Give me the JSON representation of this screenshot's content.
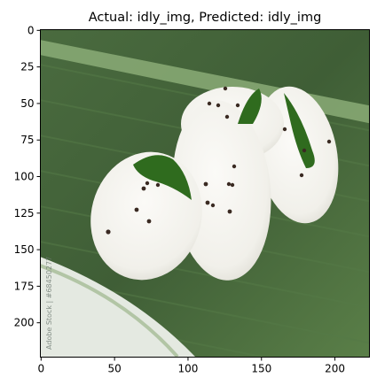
{
  "title": "Actual: idly_img, Predicted: idly_img",
  "image": {
    "subject": "idly-on-banana-leaf-photo",
    "watermark_text": "Adobe Stock | #68450277",
    "colors": {
      "leaf_dark": "#3d5a34",
      "leaf_mid": "#5a7d4a",
      "leaf_light": "#8fb07a",
      "idly": "#f4f3ef",
      "idly_shadow": "#dcdad2",
      "seed": "#3a2a22",
      "background": "#e9ede6"
    }
  },
  "axes": {
    "x_ticks": [
      "0",
      "50",
      "100",
      "150",
      "200"
    ],
    "y_ticks": [
      "0",
      "25",
      "50",
      "75",
      "100",
      "125",
      "150",
      "175",
      "200"
    ],
    "x_tick_values": [
      0,
      50,
      100,
      150,
      200
    ],
    "y_tick_values": [
      0,
      25,
      50,
      75,
      100,
      125,
      150,
      175,
      200
    ],
    "xlim": [
      -0.5,
      223.5
    ],
    "ylim": [
      223.5,
      -0.5
    ]
  }
}
